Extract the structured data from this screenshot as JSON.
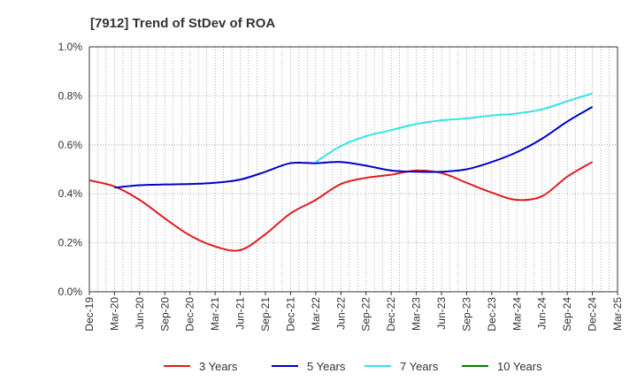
{
  "chart_data": {
    "type": "line",
    "title": "[7912]  Trend of StDev of ROA",
    "xlabel": "",
    "ylabel": "",
    "x_ticks": [
      "Dec-19",
      "Mar-20",
      "Jun-20",
      "Sep-20",
      "Dec-20",
      "Mar-21",
      "Jun-21",
      "Sep-21",
      "Dec-21",
      "Mar-22",
      "Jun-22",
      "Sep-22",
      "Dec-22",
      "Mar-23",
      "Jun-23",
      "Sep-23",
      "Dec-23",
      "Mar-24",
      "Jun-24",
      "Sep-24",
      "Dec-24",
      "Mar-25"
    ],
    "y_ticks": [
      "0.0%",
      "0.2%",
      "0.4%",
      "0.6%",
      "0.8%",
      "1.0%"
    ],
    "ylim": [
      0,
      1.0
    ],
    "y_unit": "%",
    "grid": true,
    "grid_style": "dotted",
    "legend_position": "bottom",
    "series": [
      {
        "name": "3 Years",
        "color": "#e41a1c",
        "x": [
          "Dec-19",
          "Mar-20",
          "Jun-20",
          "Sep-20",
          "Dec-20",
          "Mar-21",
          "Jun-21",
          "Sep-21",
          "Dec-21",
          "Mar-22",
          "Jun-22",
          "Sep-22",
          "Dec-22",
          "Mar-23",
          "Jun-23",
          "Sep-23",
          "Dec-23",
          "Mar-24",
          "Jun-24",
          "Sep-24",
          "Dec-24"
        ],
        "values": [
          0.455,
          0.43,
          0.375,
          0.3,
          0.23,
          0.185,
          0.17,
          0.235,
          0.32,
          0.375,
          0.44,
          0.465,
          0.478,
          0.495,
          0.485,
          0.445,
          0.405,
          0.375,
          0.39,
          0.47,
          0.53
        ]
      },
      {
        "name": "5 Years",
        "color": "#0000cc",
        "x": [
          "Mar-20",
          "Jun-20",
          "Sep-20",
          "Dec-20",
          "Mar-21",
          "Jun-21",
          "Sep-21",
          "Dec-21",
          "Mar-22",
          "Jun-22",
          "Sep-22",
          "Dec-22",
          "Mar-23",
          "Jun-23",
          "Sep-23",
          "Dec-23",
          "Mar-24",
          "Jun-24",
          "Sep-24",
          "Dec-24"
        ],
        "values": [
          0.425,
          0.435,
          0.438,
          0.44,
          0.445,
          0.458,
          0.49,
          0.525,
          0.525,
          0.53,
          0.515,
          0.495,
          0.49,
          0.49,
          0.5,
          0.53,
          0.57,
          0.625,
          0.695,
          0.755
        ]
      },
      {
        "name": "7 Years",
        "color": "#33e5e5",
        "x": [
          "Mar-22",
          "Jun-22",
          "Sep-22",
          "Dec-22",
          "Mar-23",
          "Jun-23",
          "Sep-23",
          "Dec-23",
          "Mar-24",
          "Jun-24",
          "Sep-24",
          "Dec-24"
        ],
        "values": [
          0.53,
          0.595,
          0.635,
          0.66,
          0.685,
          0.7,
          0.708,
          0.72,
          0.728,
          0.745,
          0.778,
          0.81
        ]
      },
      {
        "name": "10 Years",
        "color": "#008000",
        "x": [],
        "values": []
      }
    ]
  }
}
